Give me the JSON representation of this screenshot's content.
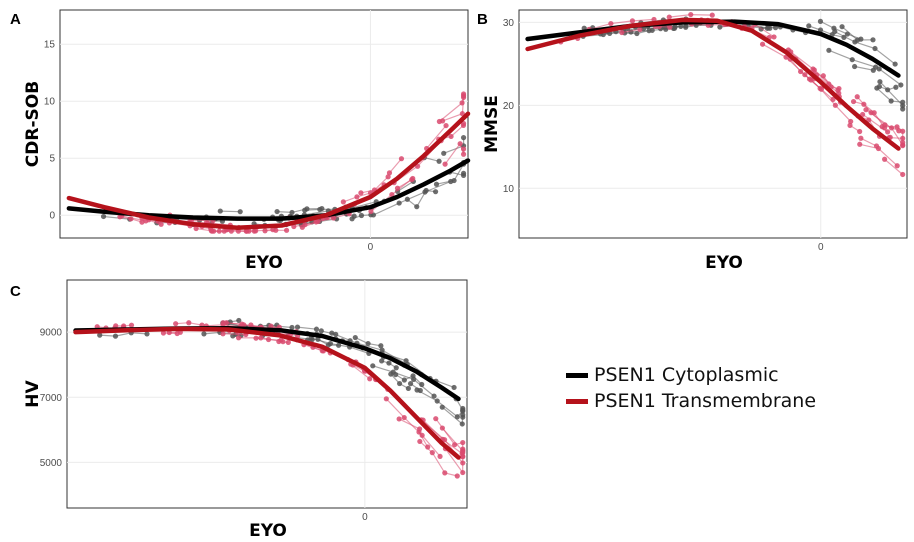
{
  "legend": [
    {
      "label": "PSEN1 Cytoplasmic",
      "color": "#000000"
    },
    {
      "label": "PSEN1 Transmembrane",
      "color": "#b5121b"
    }
  ],
  "colors": {
    "cytoplasmic_points": "#555555",
    "transmembrane_points": "#d94a6e"
  },
  "chart_data": [
    {
      "panel": "A",
      "type": "line",
      "xlabel": "EYO",
      "ylabel": "CDR-SOB",
      "x_ticks": [
        0
      ],
      "y_ticks": [
        0,
        5,
        10,
        15
      ],
      "xlim": [
        -35,
        11
      ],
      "ylim": [
        -2,
        18
      ],
      "grid": true,
      "series": [
        {
          "name": "PSEN1 Cytoplasmic",
          "x": [
            -34,
            -30,
            -25,
            -20,
            -15,
            -10,
            -5,
            0,
            3,
            6,
            9,
            11
          ],
          "y": [
            0.6,
            0.3,
            0,
            -0.2,
            -0.3,
            -0.3,
            0,
            0.7,
            1.6,
            2.7,
            3.9,
            4.8
          ]
        },
        {
          "name": "PSEN1 Transmembrane",
          "x": [
            -34,
            -30,
            -25,
            -20,
            -15,
            -10,
            -5,
            0,
            3,
            6,
            9,
            11
          ],
          "y": [
            1.5,
            0.7,
            -0.2,
            -0.8,
            -1.1,
            -0.9,
            0,
            1.6,
            3.2,
            5.2,
            7.4,
            8.9
          ]
        }
      ]
    },
    {
      "panel": "B",
      "type": "line",
      "xlabel": "EYO",
      "ylabel": "MMSE",
      "x_ticks": [
        0
      ],
      "y_ticks": [
        10,
        20,
        30
      ],
      "xlim": [
        -35,
        10
      ],
      "ylim": [
        4,
        31.5
      ],
      "grid": true,
      "series": [
        {
          "name": "PSEN1 Cytoplasmic",
          "x": [
            -34,
            -28,
            -22,
            -16,
            -10,
            -5,
            0,
            3,
            6,
            9
          ],
          "y": [
            28,
            28.8,
            29.6,
            30,
            30.1,
            29.8,
            28.6,
            27.3,
            25.6,
            23.6
          ]
        },
        {
          "name": "PSEN1 Transmembrane",
          "x": [
            -34,
            -28,
            -22,
            -16,
            -12,
            -8,
            -4,
            0,
            3,
            6,
            9
          ],
          "y": [
            26.8,
            28.4,
            29.6,
            30.3,
            30.2,
            29,
            26.4,
            22.8,
            19.9,
            17.2,
            14.8
          ]
        }
      ]
    },
    {
      "panel": "C",
      "type": "line",
      "xlabel": "EYO",
      "ylabel": "HV",
      "x_ticks": [
        0
      ],
      "y_ticks": [
        5000,
        7000,
        9000
      ],
      "xlim": [
        -35,
        12
      ],
      "ylim": [
        3600,
        10600
      ],
      "grid": true,
      "series": [
        {
          "name": "PSEN1 Cytoplasmic",
          "x": [
            -34,
            -28,
            -22,
            -16,
            -10,
            -5,
            0,
            3,
            6,
            9,
            11
          ],
          "y": [
            9050,
            9080,
            9110,
            9120,
            9060,
            8880,
            8500,
            8200,
            7800,
            7300,
            6950
          ]
        },
        {
          "name": "PSEN1 Transmembrane",
          "x": [
            -34,
            -28,
            -22,
            -16,
            -10,
            -5,
            0,
            3,
            6,
            9,
            11
          ],
          "y": [
            9000,
            9060,
            9100,
            9080,
            8900,
            8550,
            7900,
            7200,
            6400,
            5600,
            5150
          ]
        }
      ]
    }
  ]
}
